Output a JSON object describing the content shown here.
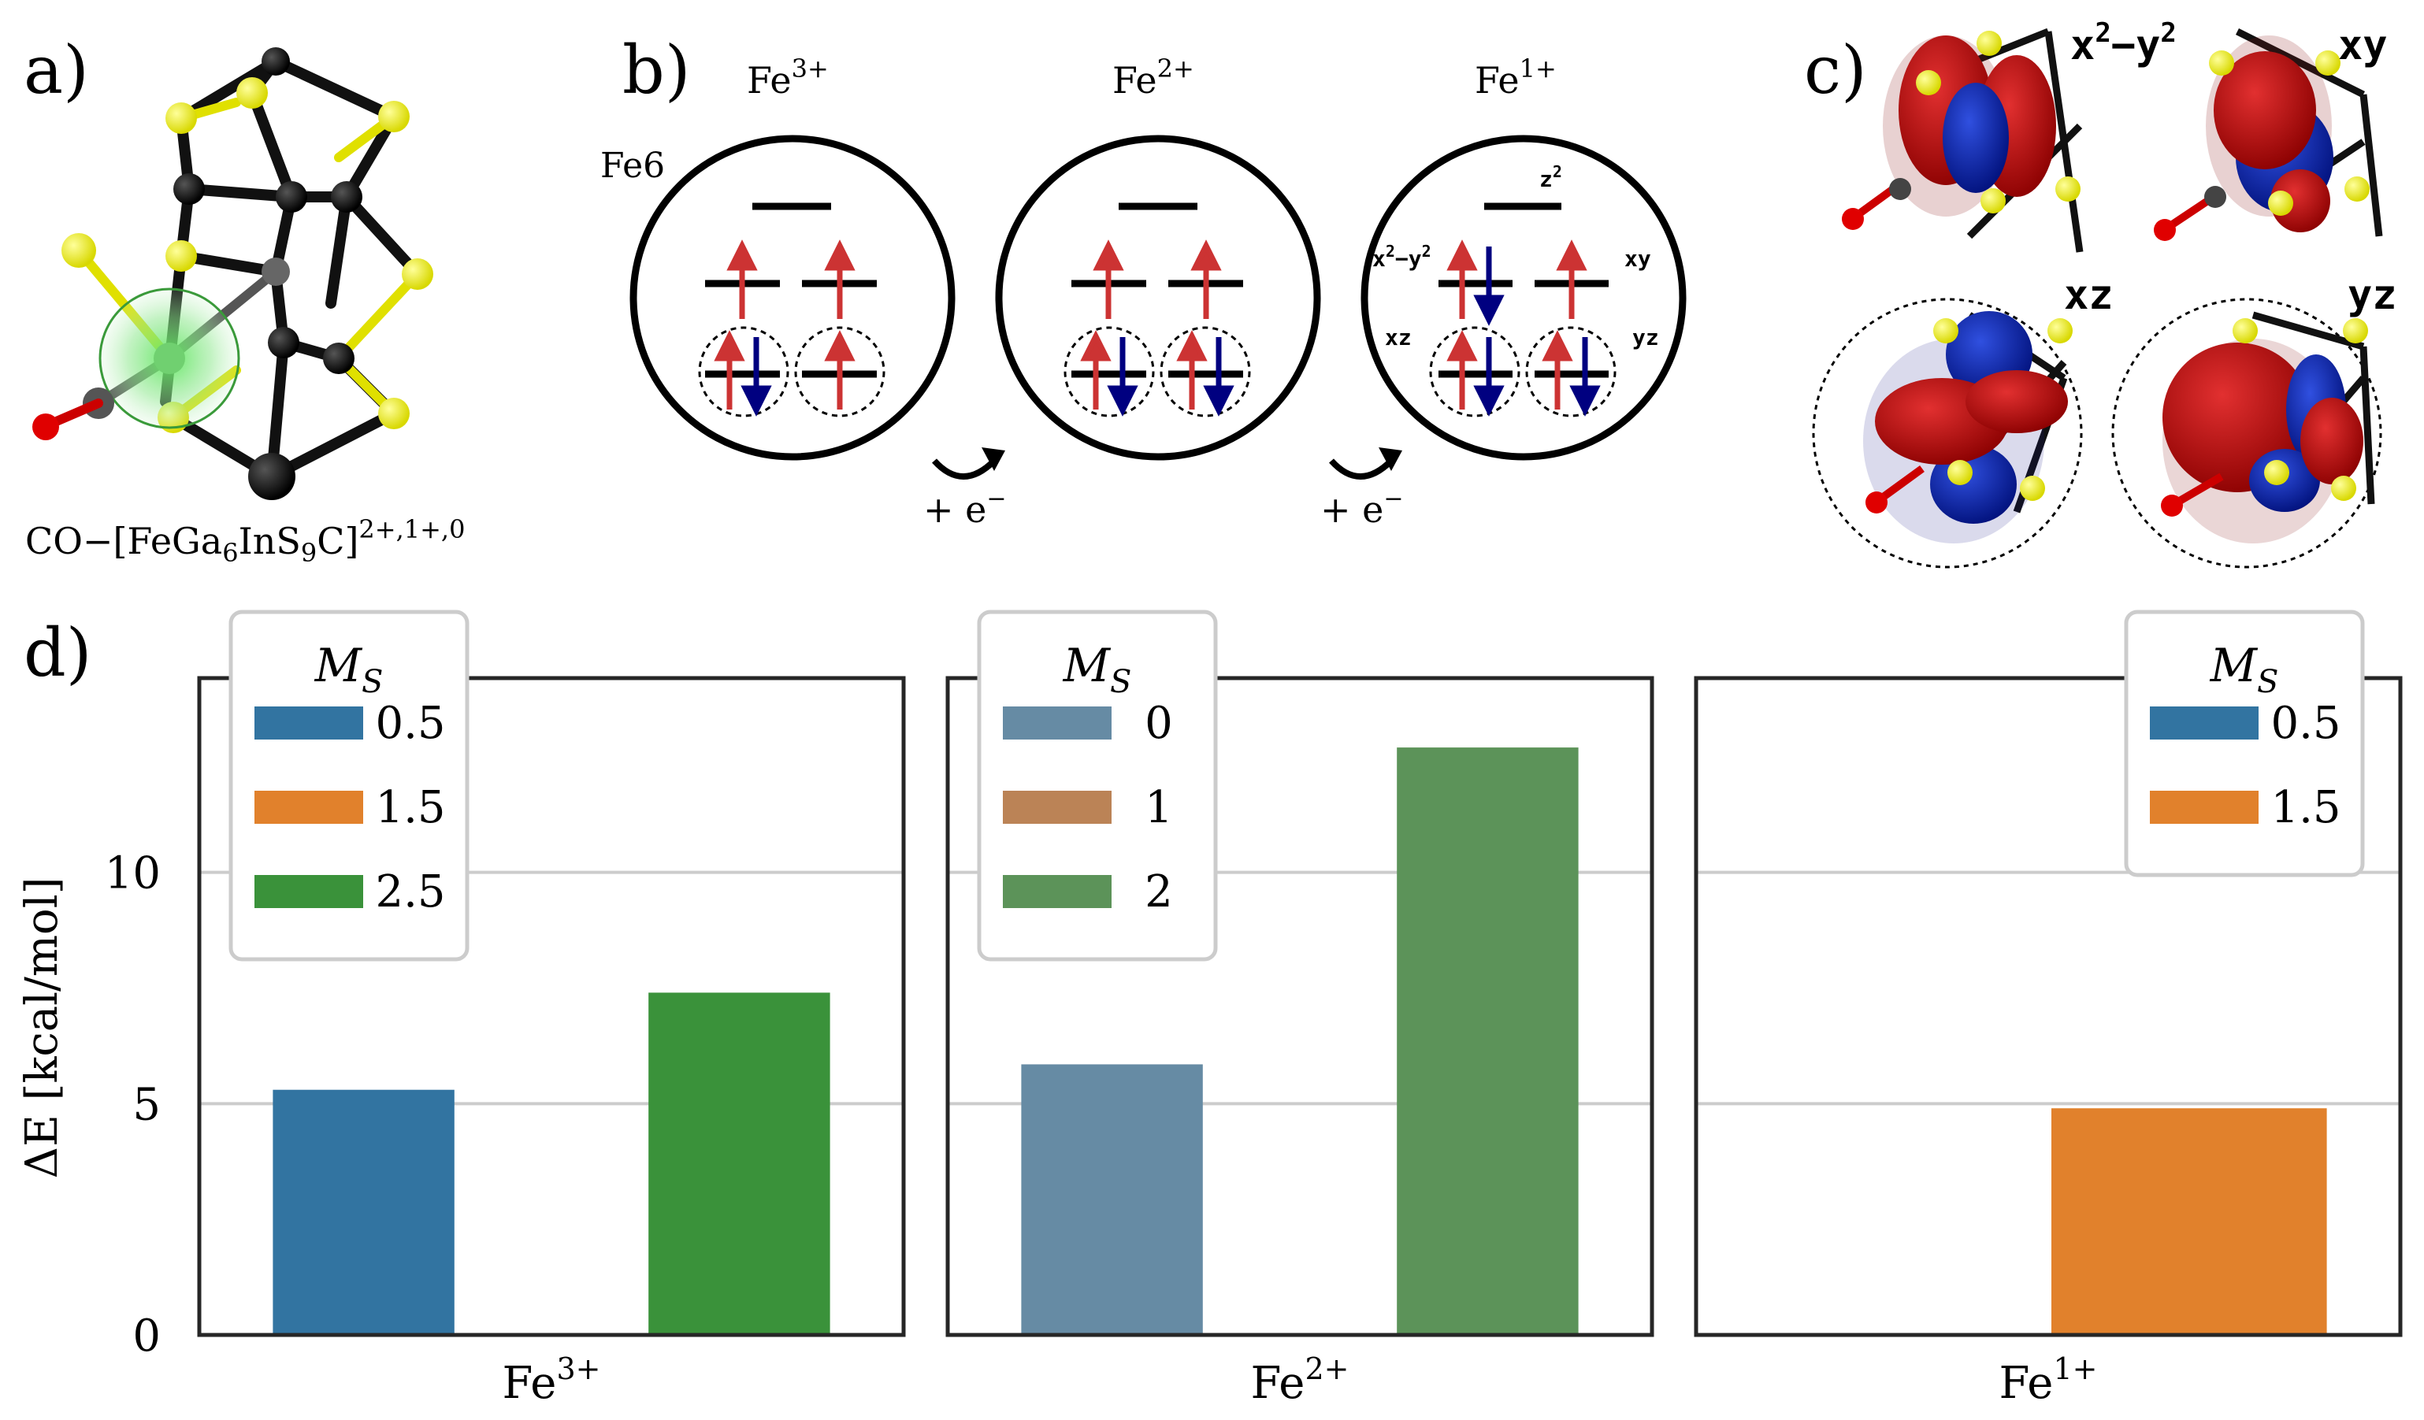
{
  "panel_labels": {
    "a": "a)",
    "b": "b)",
    "c": "c)",
    "d": "d)"
  },
  "panel_a": {
    "formula_prefix": "CO",
    "formula_dash": "−",
    "formula_body": "[FeGa",
    "sub_1": "6",
    "formula_body_2": "InS",
    "sub_2": "9",
    "formula_body_3": "C]",
    "sup": "2+,1+,0"
  },
  "panel_b": {
    "site_label": "Fe6",
    "states": [
      {
        "ion": "Fe",
        "charge": "3+"
      },
      {
        "ion": "Fe",
        "charge": "2+"
      },
      {
        "ion": "Fe",
        "charge": "1+"
      }
    ],
    "reduction_label": "+ e",
    "reduction_sup": "−",
    "orbital_labels": {
      "z2": "z",
      "z2_sup": "2",
      "x2y2": "x",
      "x2y2_mid": "−y",
      "x2y2_sup": "2",
      "xy": "xy",
      "xz": "xz",
      "yz": "yz"
    }
  },
  "panel_c": {
    "orbitals": [
      {
        "label": "x",
        "sup": "2",
        "mid": "−y",
        "sup2": "2"
      },
      {
        "label": "xy"
      },
      {
        "label": "xz"
      },
      {
        "label": "yz"
      }
    ]
  },
  "chart_data": {
    "type": "bar",
    "ylabel": "ΔE [kcal/mol]",
    "ylim": [
      0,
      14.2
    ],
    "yticks": [
      0,
      5,
      10
    ],
    "grid": "horizontal",
    "legend_title": "M_S",
    "facets": [
      {
        "xlabel": "Fe",
        "xlabel_sup": "3+",
        "legend_placement": "top-left",
        "series": [
          {
            "name": "0.5",
            "color": "#3274a1",
            "value": 5.3
          },
          {
            "name": "1.5",
            "color": "#e1812c",
            "value": 0
          },
          {
            "name": "2.5",
            "color": "#3a923a",
            "value": 7.4
          }
        ]
      },
      {
        "xlabel": "Fe",
        "xlabel_sup": "2+",
        "legend_placement": "top-left",
        "series": [
          {
            "name": "0",
            "color": "#668ba4",
            "value": 5.85
          },
          {
            "name": "1",
            "color": "#bb8356",
            "value": 0
          },
          {
            "name": "2",
            "color": "#5c9359",
            "value": 12.7
          }
        ]
      },
      {
        "xlabel": "Fe",
        "xlabel_sup": "1+",
        "legend_placement": "top-right",
        "series": [
          {
            "name": "0.5",
            "color": "#3274a1",
            "value": 0
          },
          {
            "name": "1.5",
            "color": "#e1812c",
            "value": 4.9
          }
        ]
      }
    ]
  }
}
